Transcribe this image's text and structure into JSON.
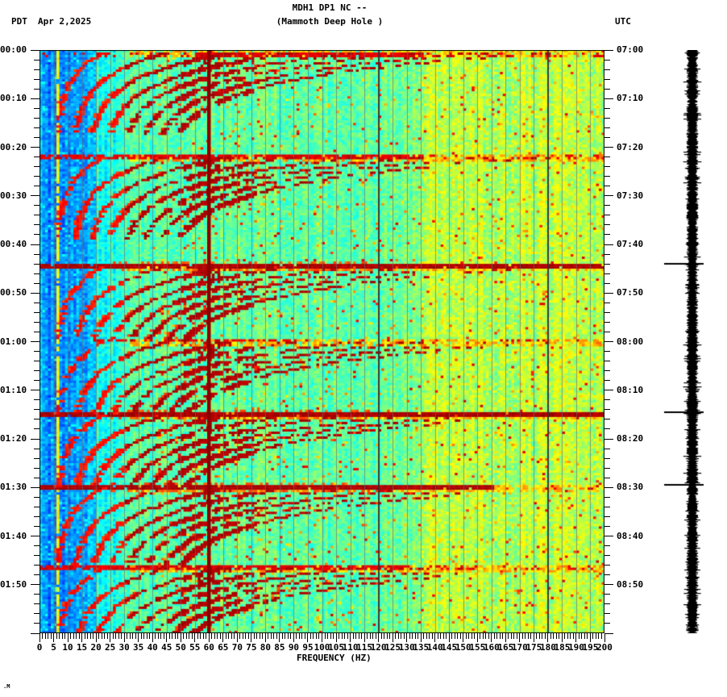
{
  "header": {
    "tz_left": "PDT",
    "date": "Apr 2,2025",
    "title": "MDH1 DP1 NC --",
    "subtitle": "(Mammoth Deep Hole )",
    "tz_right": "UTC"
  },
  "x_axis": {
    "label": "FREQUENCY (HZ)"
  },
  "watermark": {
    "text": ".M"
  },
  "chart_data": {
    "type": "heatmap",
    "subtype": "seismic-spectrogram",
    "station": "MDH1 DP1 NC --",
    "station_name": "Mammoth Deep Hole",
    "date": "Apr 2,2025",
    "xlabel": "FREQUENCY (HZ)",
    "x_range_hz": [
      0,
      200
    ],
    "x_major_tick_hz": 5,
    "x_minor_tick_hz": 1,
    "time_axis_left": {
      "timezone": "PDT",
      "start": "00:00",
      "end": "02:00",
      "major_tick_min": 10,
      "minor_tick_min": 2,
      "labels": [
        "00:00",
        "00:10",
        "00:20",
        "00:30",
        "00:40",
        "00:50",
        "01:00",
        "01:10",
        "01:20",
        "01:30",
        "01:40",
        "01:50"
      ]
    },
    "time_axis_right": {
      "timezone": "UTC",
      "start": "07:00",
      "end": "09:00",
      "major_tick_min": 10,
      "minor_tick_min": 2,
      "labels": [
        "07:00",
        "07:10",
        "07:20",
        "07:30",
        "07:40",
        "07:50",
        "08:00",
        "08:10",
        "08:20",
        "08:30",
        "08:40",
        "08:50"
      ]
    },
    "freq_tick_labels": [
      "0",
      "5",
      "10",
      "15",
      "20",
      "25",
      "30",
      "35",
      "40",
      "45",
      "50",
      "55",
      "60",
      "65",
      "70",
      "75",
      "80",
      "85",
      "90",
      "95",
      "100",
      "105",
      "110",
      "115",
      "120",
      "125",
      "130",
      "135",
      "140",
      "145",
      "150",
      "155",
      "160",
      "165",
      "170",
      "175",
      "180",
      "185",
      "190",
      "195",
      "200"
    ],
    "colormap": "jet",
    "grid_lines_every_hz": 5,
    "grid_line_color": "#69737a",
    "background_bands": [
      {
        "freq_hz": [
          0,
          10
        ],
        "appearance": "blue"
      },
      {
        "freq_hz": [
          10,
          20
        ],
        "appearance": "blue speckled"
      },
      {
        "freq_hz": [
          20,
          30
        ],
        "appearance": "light blue"
      },
      {
        "freq_hz": [
          30,
          42
        ],
        "appearance": "cyan"
      },
      {
        "freq_hz": [
          42,
          135
        ],
        "appearance": "turquoise-green with yellow/orange/red speckle"
      },
      {
        "freq_hz": [
          135,
          200
        ],
        "appearance": "yellow-green speckled"
      }
    ],
    "persistent_tones": [
      {
        "hz": 6.6,
        "appearance": "yellow-green narrowband line"
      },
      {
        "hz": 60,
        "appearance": "thick dark-red mains-hum line",
        "color": "#8b0000"
      },
      {
        "hz": 120,
        "appearance": "thin dark harmonic line",
        "color": "#4a3535"
      },
      {
        "hz": 180,
        "appearance": "thin dark harmonic line",
        "color": "#4a3535"
      }
    ],
    "broadband_events": [
      {
        "pdt": "00:00.7",
        "minutes": 0.7,
        "strength": 0.5,
        "freq_range_hz": [
          55,
          135
        ]
      },
      {
        "pdt": "00:21.5",
        "minutes": 21.5,
        "strength": 0.6,
        "freq_range_hz": [
          0,
          135
        ]
      },
      {
        "pdt": "00:44",
        "minutes": 44,
        "strength": 1.0,
        "freq_range_hz": [
          0,
          200
        ]
      },
      {
        "pdt": "00:59.5",
        "minutes": 59.5,
        "strength": 0.3,
        "freq_range_hz": [
          20,
          90
        ]
      },
      {
        "pdt": "01:14.5",
        "minutes": 74.5,
        "strength": 1.0,
        "freq_range_hz": [
          0,
          200
        ]
      },
      {
        "pdt": "01:29.5",
        "minutes": 89.5,
        "strength": 0.95,
        "freq_range_hz": [
          0,
          160
        ]
      },
      {
        "pdt": "01:46",
        "minutes": 106,
        "strength": 0.5,
        "freq_range_hz": [
          0,
          130
        ]
      }
    ],
    "glide_families": {
      "start_minutes": [
        0,
        21.5,
        44,
        59.5,
        74.5,
        89.5,
        106
      ],
      "fundamental_floor_hz": 5.5,
      "fundamental_sweep_hz": 18,
      "decay_time_min": 5.2,
      "harmonics_drawn": 8,
      "max_duration_min": 17,
      "appearance": "repeating dark-red harmonic arcs gliding down in frequency after each broadband onset"
    },
    "right_trace": {
      "appearance": "saturated black amplitude (helicorder) strip",
      "event_marks_minutes": [
        44,
        74.5,
        89.5
      ]
    }
  }
}
